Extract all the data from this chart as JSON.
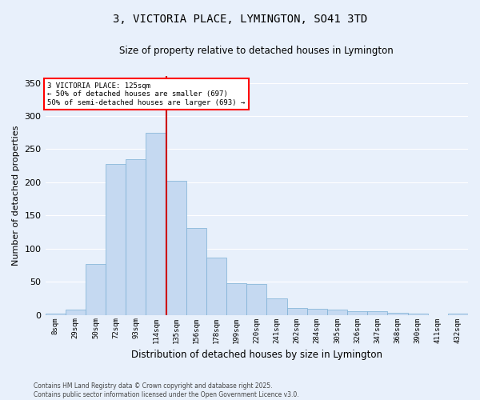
{
  "title": "3, VICTORIA PLACE, LYMINGTON, SO41 3TD",
  "subtitle": "Size of property relative to detached houses in Lymington",
  "xlabel": "Distribution of detached houses by size in Lymington",
  "ylabel": "Number of detached properties",
  "bar_color": "#c5d9f1",
  "bar_edge_color": "#7bafd4",
  "background_color": "#e8f0fb",
  "grid_color": "#ffffff",
  "vline_color": "#cc0000",
  "categories": [
    "8sqm",
    "29sqm",
    "50sqm",
    "72sqm",
    "93sqm",
    "114sqm",
    "135sqm",
    "156sqm",
    "178sqm",
    "199sqm",
    "220sqm",
    "241sqm",
    "262sqm",
    "284sqm",
    "305sqm",
    "326sqm",
    "347sqm",
    "368sqm",
    "390sqm",
    "411sqm",
    "432sqm"
  ],
  "bar_heights": [
    2,
    8,
    77,
    228,
    235,
    275,
    202,
    131,
    87,
    48,
    47,
    25,
    11,
    9,
    8,
    5,
    5,
    3,
    2,
    0,
    2
  ],
  "ylim": [
    0,
    360
  ],
  "yticks": [
    0,
    50,
    100,
    150,
    200,
    250,
    300,
    350
  ],
  "vline_x": 5.5,
  "annotation_title": "3 VICTORIA PLACE: 125sqm",
  "annotation_line1": "← 50% of detached houses are smaller (697)",
  "annotation_line2": "50% of semi-detached houses are larger (693) →",
  "footer1": "Contains HM Land Registry data © Crown copyright and database right 2025.",
  "footer2": "Contains public sector information licensed under the Open Government Licence v3.0."
}
